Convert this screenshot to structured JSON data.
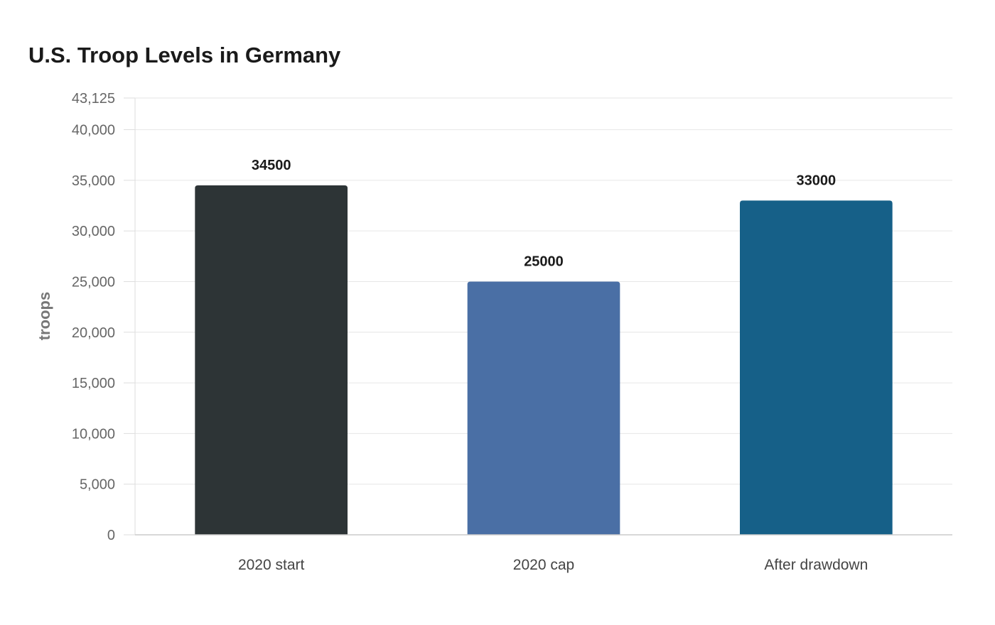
{
  "chart_data": {
    "type": "bar",
    "title": "U.S. Troop Levels in Germany",
    "xlabel": "",
    "ylabel": "troops",
    "categories": [
      "2020 start",
      "2020 cap",
      "After drawdown"
    ],
    "values": [
      34500,
      25000,
      33000
    ],
    "data_labels": [
      "34500",
      "25000",
      "33000"
    ],
    "colors": [
      "#2d3436",
      "#4a6fa5",
      "#166088"
    ],
    "ylim": [
      0,
      43125
    ],
    "yticks": [
      0,
      5000,
      10000,
      15000,
      20000,
      25000,
      30000,
      35000,
      40000,
      43125
    ],
    "ytick_labels": [
      "0",
      "5,000",
      "10,000",
      "15,000",
      "20,000",
      "25,000",
      "30,000",
      "35,000",
      "40,000",
      "43,125"
    ],
    "grid": true,
    "legend": "none"
  }
}
